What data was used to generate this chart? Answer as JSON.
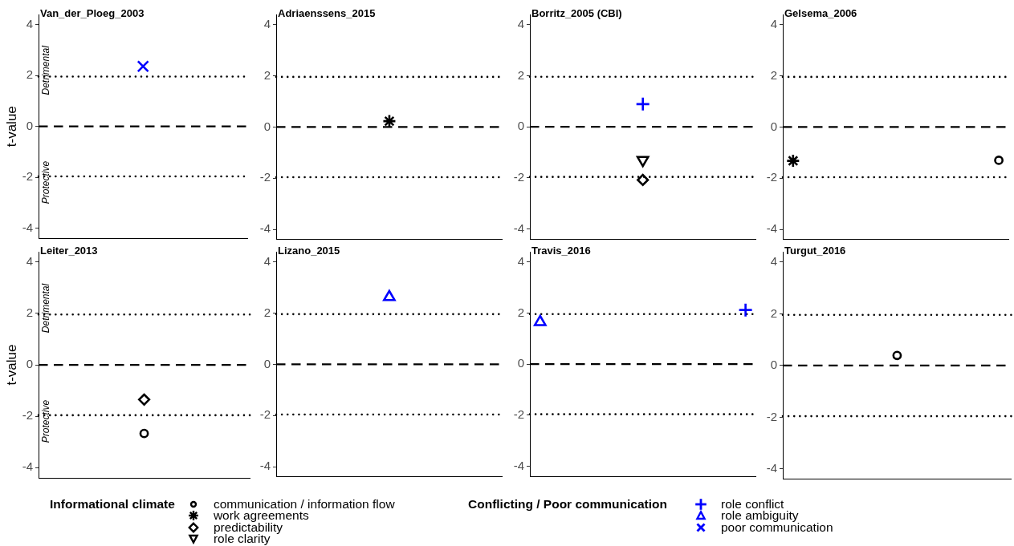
{
  "chart_data": [
    {
      "type": "scatter",
      "title": "Van_der_Ploeg_2003",
      "ylabel": "t-value",
      "annotations": [
        "Detrimental",
        "Protective"
      ],
      "categories": [
        null
      ],
      "series": [
        {
          "color": "#0000ff",
          "marker": "cross",
          "values": [
            2.36
          ]
        }
      ],
      "ylim": [
        -4.4,
        4.4
      ],
      "yticks": [
        -4,
        -2,
        0,
        2,
        4
      ],
      "ref_lines": [
        {
          "axis": "y",
          "value": 1.96,
          "line_style": "dotted",
          "color": "#000000"
        },
        {
          "axis": "y",
          "value": 0,
          "line_style": "dashed",
          "color": "#000000"
        },
        {
          "axis": "y",
          "value": -1.96,
          "line_style": "dotted",
          "color": "#000000"
        }
      ],
      "tick_labels": "y"
    },
    {
      "type": "scatter",
      "title": "Adriaenssens_2015",
      "categories": [
        null
      ],
      "series": [
        {
          "color": "#000000",
          "values": [
            0.23
          ]
        }
      ],
      "ylim": [
        -4.4,
        4.4
      ],
      "yticks": [
        -4,
        -2,
        0,
        2,
        4
      ],
      "ref_lines": [
        {
          "axis": "y",
          "value": 1.96,
          "line_style": "dotted",
          "color": "#000000"
        },
        {
          "axis": "y",
          "value": 0,
          "line_style": "dashed",
          "color": "#000000"
        },
        {
          "axis": "y",
          "value": -1.96,
          "line_style": "dotted",
          "color": "#000000"
        }
      ],
      "tick_labels": "y"
    },
    {
      "type": "scatter",
      "title": "Borritz_2005 (CBI)",
      "categories": [
        null
      ],
      "series": [
        {
          "color": "#0000ff",
          "marker": "plus",
          "values": [
            0.89
          ]
        },
        {
          "color": "#000000",
          "marker": "triangle-down",
          "values": [
            -1.3
          ]
        },
        {
          "color": "#000000",
          "marker": "diamond",
          "values": [
            -2.08
          ]
        }
      ],
      "ylim": [
        -4.4,
        4.4
      ],
      "yticks": [
        -4,
        -2,
        0,
        2,
        4
      ],
      "ref_lines": [
        {
          "axis": "y",
          "value": 1.96,
          "line_style": "dotted",
          "color": "#000000"
        },
        {
          "axis": "y",
          "value": 0,
          "line_style": "dashed",
          "color": "#000000"
        },
        {
          "axis": "y",
          "value": -1.96,
          "line_style": "dotted",
          "color": "#000000"
        }
      ],
      "tick_labels": "y"
    },
    {
      "type": "scatter",
      "title": "Gelsema_2006",
      "categories": [
        null,
        null
      ],
      "series": [
        {
          "color": "#000000",
          "values": [
            -1.32,
            null
          ]
        },
        {
          "color": "#000000",
          "marker": "circle",
          "values": [
            null,
            -1.3
          ]
        }
      ],
      "ylim": [
        -4.4,
        4.4
      ],
      "yticks": [
        -4,
        -2,
        0,
        2,
        4
      ],
      "ref_lines": [
        {
          "axis": "y",
          "value": 1.96,
          "line_style": "dotted",
          "color": "#000000"
        },
        {
          "axis": "y",
          "value": 0,
          "line_style": "dashed",
          "color": "#000000"
        },
        {
          "axis": "y",
          "value": -1.96,
          "line_style": "dotted",
          "color": "#000000"
        }
      ],
      "tick_labels": "y"
    },
    {
      "type": "scatter",
      "title": "Leiter_2013",
      "ylabel": "t-value",
      "annotations": [
        "Detrimental",
        "Protective"
      ],
      "categories": [
        null
      ],
      "series": [
        {
          "color": "#000000",
          "marker": "diamond",
          "values": [
            -1.35
          ]
        },
        {
          "color": "#000000",
          "marker": "circle",
          "values": [
            -2.67
          ]
        }
      ],
      "ylim": [
        -4.4,
        4.4
      ],
      "yticks": [
        -4,
        -2,
        0,
        2,
        4
      ],
      "ref_lines": [
        {
          "axis": "y",
          "value": 1.96,
          "line_style": "dotted",
          "color": "#000000"
        },
        {
          "axis": "y",
          "value": 0,
          "line_style": "dashed",
          "color": "#000000"
        },
        {
          "axis": "y",
          "value": -1.96,
          "line_style": "dotted",
          "color": "#000000"
        }
      ],
      "tick_labels": "y"
    },
    {
      "type": "scatter",
      "title": "Lizano_2015",
      "categories": [
        null
      ],
      "series": [
        {
          "color": "#0000ff",
          "marker": "triangle",
          "values": [
            2.63
          ]
        }
      ],
      "ylim": [
        -4.4,
        4.4
      ],
      "yticks": [
        -4,
        -2,
        0,
        2,
        4
      ],
      "ref_lines": [
        {
          "axis": "y",
          "value": 1.96,
          "line_style": "dotted",
          "color": "#000000"
        },
        {
          "axis": "y",
          "value": 0,
          "line_style": "dashed",
          "color": "#000000"
        },
        {
          "axis": "y",
          "value": -1.96,
          "line_style": "dotted",
          "color": "#000000"
        }
      ],
      "tick_labels": "y"
    },
    {
      "type": "scatter",
      "title": "Travis_2016",
      "categories": [
        null,
        null
      ],
      "series": [
        {
          "color": "#0000ff",
          "marker": "triangle",
          "values": [
            1.65,
            null
          ]
        },
        {
          "color": "#0000ff",
          "marker": "plus",
          "values": [
            null,
            2.12
          ]
        }
      ],
      "ylim": [
        -4.4,
        4.4
      ],
      "yticks": [
        -4,
        -2,
        0,
        2,
        4
      ],
      "ref_lines": [
        {
          "axis": "y",
          "value": 1.96,
          "line_style": "dotted",
          "color": "#000000"
        },
        {
          "axis": "y",
          "value": 0,
          "line_style": "dashed",
          "color": "#000000"
        },
        {
          "axis": "y",
          "value": -1.96,
          "line_style": "dotted",
          "color": "#000000"
        }
      ],
      "tick_labels": "y"
    },
    {
      "type": "scatter",
      "title": "Turgut_2016",
      "categories": [
        null
      ],
      "series": [
        {
          "color": "#000000",
          "marker": "circle",
          "values": [
            0.39
          ]
        }
      ],
      "ylim": [
        -4.4,
        4.4
      ],
      "yticks": [
        -4,
        -2,
        0,
        2,
        4
      ],
      "ref_lines": [
        {
          "axis": "y",
          "value": 1.96,
          "line_style": "dotted",
          "color": "#000000"
        },
        {
          "axis": "y",
          "value": 0,
          "line_style": "dashed",
          "color": "#000000"
        },
        {
          "axis": "y",
          "value": -1.96,
          "line_style": "dotted",
          "color": "#000000"
        }
      ],
      "tick_labels": "y"
    },
    {
      "type": "other",
      "legend_title": "Informational climate",
      "series": [
        {
          "name": "communication / information flow",
          "color": "#000000",
          "marker": "circle"
        },
        {
          "name": "work agreements",
          "color": "#000000"
        },
        {
          "name": "predictability",
          "color": "#000000",
          "marker": "diamond"
        },
        {
          "name": "role clarity",
          "color": "#000000",
          "marker": "triangle-down"
        }
      ]
    },
    {
      "type": "other",
      "legend_title": "Conflicting / Poor communication",
      "series": [
        {
          "name": "role conflict",
          "color": "#0000ff",
          "marker": "plus"
        },
        {
          "name": "role ambiguity",
          "color": "#0000ff",
          "marker": "triangle"
        },
        {
          "name": "poor communication",
          "color": "#0000ff",
          "marker": "cross"
        }
      ]
    }
  ]
}
